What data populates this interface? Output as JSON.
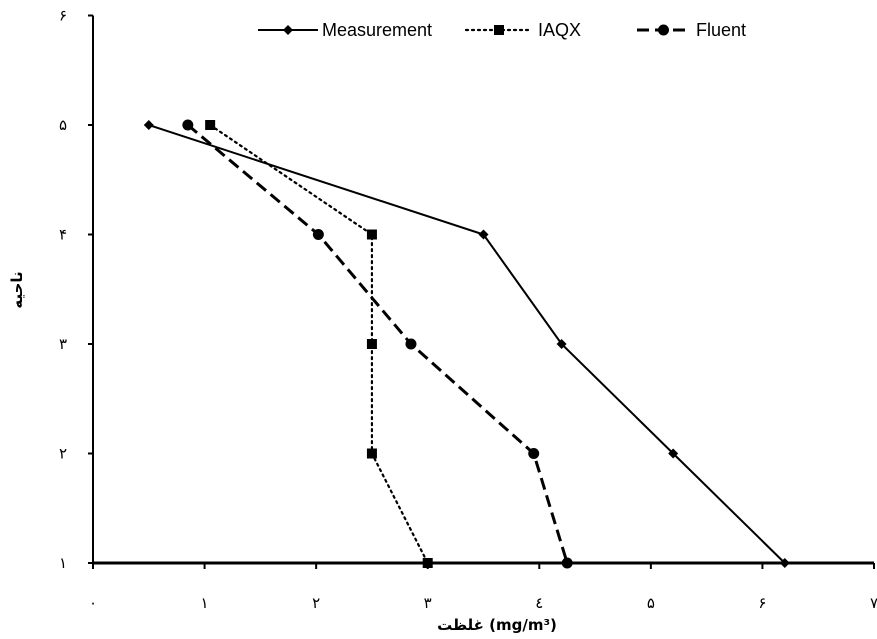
{
  "chart_data": {
    "type": "line",
    "xlabel": "غلظت (mg/m³)",
    "ylabel": "ناحیه",
    "xlim": [
      0,
      7
    ],
    "ylim": [
      1,
      6
    ],
    "x_ticks": [
      0,
      1,
      2,
      3,
      4,
      5,
      6,
      7
    ],
    "x_tick_labels": [
      "٠",
      "١",
      "٢",
      "٣",
      "٤",
      "۵",
      "۶",
      "٧"
    ],
    "y_ticks": [
      1,
      2,
      3,
      4,
      5,
      6
    ],
    "y_tick_labels": [
      "١",
      "٢",
      "٣",
      "۴",
      "۵",
      "۶"
    ],
    "grid": false,
    "legend_position": "top",
    "series": [
      {
        "name": "Measurement",
        "line_style": "solid",
        "marker": "diamond",
        "color": "#000000",
        "points": [
          [
            0.5,
            5
          ],
          [
            3.5,
            4
          ],
          [
            4.2,
            3
          ],
          [
            5.2,
            2
          ],
          [
            6.2,
            1
          ]
        ]
      },
      {
        "name": "IAQX",
        "line_style": "dotted",
        "marker": "square",
        "color": "#000000",
        "points": [
          [
            1.05,
            5
          ],
          [
            2.5,
            4
          ],
          [
            2.5,
            3
          ],
          [
            2.5,
            2
          ],
          [
            3.0,
            1
          ]
        ]
      },
      {
        "name": "Fluent",
        "line_style": "dashed",
        "marker": "circle",
        "color": "#000000",
        "points": [
          [
            0.85,
            5
          ],
          [
            2.02,
            4
          ],
          [
            2.85,
            3
          ],
          [
            3.95,
            2
          ],
          [
            4.25,
            1
          ]
        ]
      }
    ]
  }
}
